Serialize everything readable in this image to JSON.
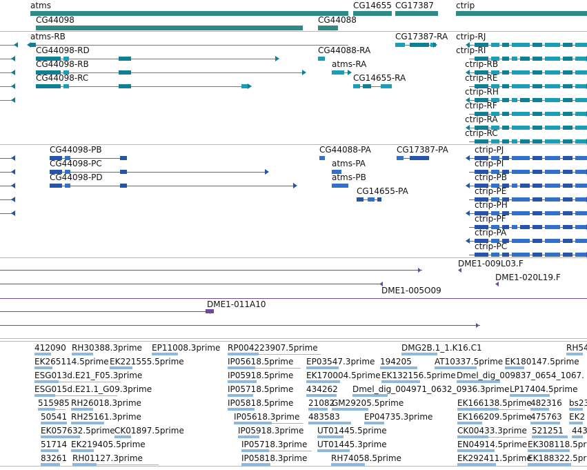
{
  "colors": {
    "gene": "#2f8a86",
    "transcript": "#1b9cb8",
    "transcript_dark": "#0f7f98",
    "protein": "#3370c9",
    "protein_dark": "#2455a8",
    "clone": "#6a4c9c",
    "est": "#8fb8dd",
    "separator": "#b8b8b8"
  },
  "genes": [
    "atms",
    "CG14655",
    "CG17387",
    "ctrip",
    "CG44098",
    "CG44088"
  ],
  "transcripts": [
    "atms-RB",
    "CG17387-RA",
    "ctrip-RJ",
    "CG44098-RD",
    "CG44088-RA",
    "ctrip-RI",
    "CG44098-RB",
    "atms-RA",
    "ctrip-RB",
    "CG44098-RC",
    "CG14655-RA",
    "ctrip-RE",
    "ctrip-RH",
    "ctrip-RF",
    "ctrip-RA",
    "ctrip-RC"
  ],
  "proteins": [
    "CG44098-PB",
    "CG44088-PA",
    "CG17387-PA",
    "ctrip-PJ",
    "CG44098-PC",
    "atms-PA",
    "ctrip-PI",
    "CG44098-PD",
    "atms-PB",
    "ctrip-PB",
    "CG14655-PA",
    "ctrip-PE",
    "ctrip-PH",
    "ctrip-PF",
    "ctrip-PA",
    "ctrip-PC"
  ],
  "clones": [
    "DME1-009L03.F",
    "DME1-020L19.F",
    "DME1-005O09",
    "DME1-011A10"
  ],
  "ests": [
    "412090",
    "RH30388.3prime",
    "EP11008.3prime",
    "RP004223907.5prime",
    "DMG2B.1_1.K16.C1",
    "RH54",
    "EK265114.5prime",
    "EK221555.5prime",
    "IP05618.5prime",
    "EP03547.3prime",
    "194205",
    "AT10337.5prime",
    "EK180147.5prime",
    "ESG013d.E21_F05.3prime",
    "IP05918.5prime",
    "EK170004.5prime",
    "EK132156.5prime",
    "Dmel_dig_009837_0654_1067.",
    "ESG015d.E21.1_G09.3prime",
    "IP05718.5prime",
    "434262",
    "Dmel_dig_004971_0632_0936.3prime",
    "LP17404.5prime",
    "515985",
    "RH26018.3prime",
    "IP05818.5prime",
    "21082",
    "GM29205.5prime",
    "EK166138.5prime",
    "482316",
    "bs23",
    "50541",
    "RH25161.3prime",
    "IP05618.3prime",
    "483583",
    "EP04735.3prime",
    "EK166209.5prime",
    "475763",
    "EK2",
    "EK057632.5prime",
    "CK01897.5prime",
    "IP05918.3prime",
    "UT01445.5prime",
    "CK00433.3prime",
    "521251",
    "443",
    "51714",
    "EK219405.5prime",
    "IP05718.3prime",
    "UT01445.3prime",
    "EN04914.5prime",
    "EK308118.5prime",
    "83261",
    "RH01127.3prime",
    "IP05818.3prime",
    "RH74058.5prime",
    "EK292411.5prime",
    "EK188322.5prime"
  ]
}
